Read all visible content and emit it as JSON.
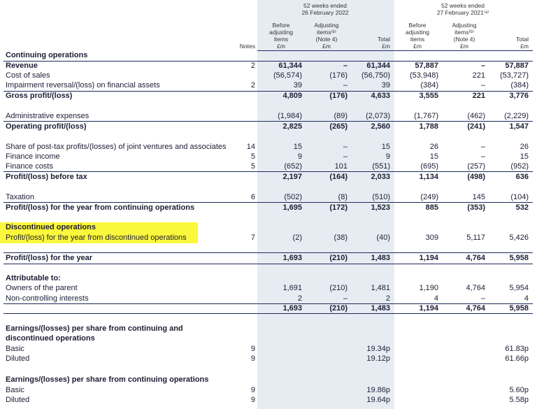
{
  "header": {
    "periods": [
      {
        "lines": [
          "52 weeks ended",
          "26 February 2022"
        ]
      },
      {
        "lines": [
          "52 weeks ended",
          "27 February 2021⁽ᵃ⁾"
        ]
      }
    ],
    "notes_label": "Notes",
    "columns": [
      {
        "lines": [
          "Before",
          "adjusting",
          "items",
          "£m"
        ]
      },
      {
        "lines": [
          "Adjusting",
          "items⁽ᵇ⁾",
          "(Note 4)",
          "£m"
        ]
      },
      {
        "lines": [
          "Total",
          "£m"
        ]
      },
      {
        "lines": [
          "Before",
          "adjusting",
          "items",
          "£m"
        ]
      },
      {
        "lines": [
          "Adjusting",
          "items⁽ᵇ⁾",
          "(Note 4)",
          "£m"
        ]
      },
      {
        "lines": [
          "Total",
          "£m"
        ]
      }
    ]
  },
  "table": {
    "rows": [
      {
        "label": "Continuing operations"
      },
      {
        "label": "Revenue",
        "notes": "2",
        "values": [
          "61,344",
          "–",
          "61,344",
          "57,887",
          "–",
          "57,887"
        ]
      },
      {
        "label": "Cost of sales",
        "values": [
          "(56,574)",
          "(176)",
          "(56,750)",
          "(53,948)",
          "221",
          "(53,727)"
        ]
      },
      {
        "label": "Impairment reversal/(loss) on financial assets",
        "notes": "2",
        "values": [
          "39",
          "–",
          "39",
          "(384)",
          "–",
          "(384)"
        ]
      },
      {
        "label": "Gross profit/(loss)",
        "values": [
          "4,809",
          "(176)",
          "4,633",
          "3,555",
          "221",
          "3,776"
        ]
      },
      {
        "label": "Administrative expenses",
        "values": [
          "(1,984)",
          "(89)",
          "(2,073)",
          "(1,767)",
          "(462)",
          "(2,229)"
        ]
      },
      {
        "label": "Operating profit/(loss)",
        "values": [
          "2,825",
          "(265)",
          "2,560",
          "1,788",
          "(241)",
          "1,547"
        ]
      },
      {
        "label": "Share of post-tax profits/(losses) of joint ventures and associates",
        "notes": "14",
        "values": [
          "15",
          "–",
          "15",
          "26",
          "–",
          "26"
        ]
      },
      {
        "label": "Finance income",
        "notes": "5",
        "values": [
          "9",
          "–",
          "9",
          "15",
          "–",
          "15"
        ]
      },
      {
        "label": "Finance costs",
        "notes": "5",
        "values": [
          "(652)",
          "101",
          "(551)",
          "(695)",
          "(257)",
          "(952)"
        ]
      },
      {
        "label": "Profit/(loss) before tax",
        "values": [
          "2,197",
          "(164)",
          "2,033",
          "1,134",
          "(498)",
          "636"
        ]
      },
      {
        "label": "Taxation",
        "notes": "6",
        "values": [
          "(502)",
          "(8)",
          "(510)",
          "(249)",
          "145",
          "(104)"
        ]
      },
      {
        "label": "Profit/(loss) for the year from continuing operations",
        "values": [
          "1,695",
          "(172)",
          "1,523",
          "885",
          "(353)",
          "532"
        ]
      },
      {
        "label": "Discontinued operations"
      },
      {
        "label": "Profit/(loss) for the year from discontinued operations",
        "notes": "7",
        "values": [
          "(2)",
          "(38)",
          "(40)",
          "309",
          "5,117",
          "5,426"
        ]
      },
      {
        "label": "Profit/(loss) for the year",
        "values": [
          "1,693",
          "(210)",
          "1,483",
          "1,194",
          "4,764",
          "5,958"
        ]
      },
      {
        "label": "Attributable to:"
      },
      {
        "label": "Owners of the parent",
        "values": [
          "1,691",
          "(210)",
          "1,481",
          "1,190",
          "4,764",
          "5,954"
        ]
      },
      {
        "label": "Non-controlling interests",
        "values": [
          "2",
          "–",
          "2",
          "4",
          "–",
          "4"
        ]
      },
      {
        "values": [
          "1,693",
          "(210)",
          "1,483",
          "1,194",
          "4,764",
          "5,958"
        ]
      },
      {
        "label": "Earnings/(losses) per share from continuing and discontinued operations"
      },
      {
        "label": "Basic",
        "notes": "9",
        "values": [
          null,
          null,
          "19.34p",
          null,
          null,
          "61.83p"
        ]
      },
      {
        "label": "Diluted",
        "notes": "9",
        "values": [
          null,
          null,
          "19.12p",
          null,
          null,
          "61.66p"
        ]
      },
      {
        "label": "Earnings/(losses) per share from continuing operations"
      },
      {
        "label": "Basic",
        "notes": "9",
        "values": [
          null,
          null,
          "19.86p",
          null,
          null,
          "5.60p"
        ]
      },
      {
        "label": "Diluted",
        "notes": "9",
        "values": [
          null,
          null,
          "19.64p",
          null,
          null,
          "5.58p"
        ]
      }
    ]
  }
}
